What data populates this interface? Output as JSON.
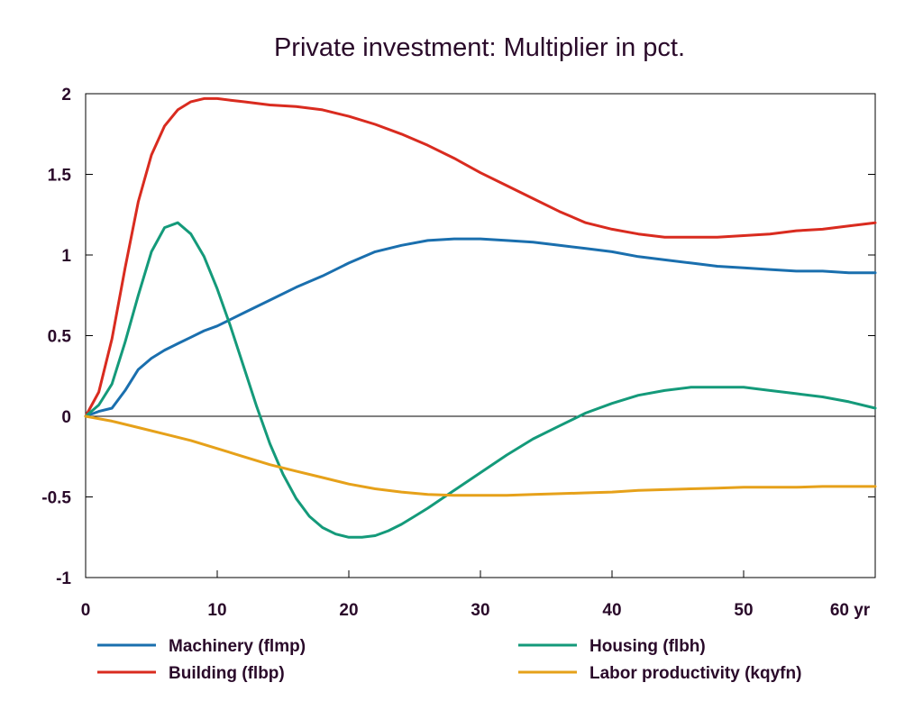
{
  "chart_data": {
    "type": "line",
    "title": "Private investment: Multiplier in pct.",
    "xlabel": "",
    "ylabel": "",
    "x_unit_label": "yr",
    "xlim": [
      0,
      60
    ],
    "ylim": [
      -1,
      2
    ],
    "x_ticks": [
      0,
      10,
      20,
      30,
      40,
      50,
      60
    ],
    "x_tick_labels": [
      "0",
      "10",
      "20",
      "30",
      "40",
      "50",
      "60"
    ],
    "y_ticks": [
      2,
      1.5,
      1,
      0.5,
      0,
      -0.5,
      -1
    ],
    "y_tick_labels": [
      "2",
      "1.5",
      "1",
      "0.5",
      "0",
      "-0.5",
      "-1"
    ],
    "grid": false,
    "zero_line": true,
    "legend_position": "bottom",
    "series": [
      {
        "name": "Machinery (flmp)",
        "color": "#1a6fae",
        "x": [
          0,
          1,
          2,
          3,
          4,
          5,
          6,
          7,
          8,
          9,
          10,
          12,
          14,
          16,
          18,
          20,
          22,
          24,
          26,
          28,
          30,
          32,
          34,
          36,
          38,
          40,
          42,
          44,
          46,
          48,
          50,
          52,
          54,
          56,
          58,
          60
        ],
        "y": [
          0,
          0.03,
          0.05,
          0.16,
          0.29,
          0.36,
          0.41,
          0.45,
          0.49,
          0.53,
          0.56,
          0.64,
          0.72,
          0.8,
          0.87,
          0.95,
          1.02,
          1.06,
          1.09,
          1.1,
          1.1,
          1.09,
          1.08,
          1.06,
          1.04,
          1.02,
          0.99,
          0.97,
          0.95,
          0.93,
          0.92,
          0.91,
          0.9,
          0.9,
          0.89,
          0.89
        ]
      },
      {
        "name": "Building (flbp)",
        "color": "#d92b1f",
        "x": [
          0,
          1,
          2,
          3,
          4,
          5,
          6,
          7,
          8,
          9,
          10,
          11,
          12,
          14,
          16,
          18,
          20,
          22,
          24,
          26,
          28,
          30,
          32,
          34,
          36,
          38,
          40,
          42,
          44,
          46,
          48,
          50,
          52,
          54,
          56,
          58,
          60
        ],
        "y": [
          0,
          0.15,
          0.48,
          0.92,
          1.33,
          1.62,
          1.8,
          1.9,
          1.95,
          1.97,
          1.97,
          1.96,
          1.95,
          1.93,
          1.92,
          1.9,
          1.86,
          1.81,
          1.75,
          1.68,
          1.6,
          1.51,
          1.43,
          1.35,
          1.27,
          1.2,
          1.16,
          1.13,
          1.11,
          1.11,
          1.11,
          1.12,
          1.13,
          1.15,
          1.16,
          1.18,
          1.2
        ]
      },
      {
        "name": "Housing (flbh)",
        "color": "#149a7a",
        "x": [
          0,
          1,
          2,
          3,
          4,
          5,
          6,
          7,
          8,
          9,
          10,
          11,
          12,
          13,
          14,
          15,
          16,
          17,
          18,
          19,
          20,
          21,
          22,
          23,
          24,
          25,
          26,
          28,
          30,
          32,
          34,
          36,
          38,
          40,
          42,
          44,
          46,
          48,
          50,
          52,
          54,
          56,
          58,
          60
        ],
        "y": [
          0,
          0.07,
          0.2,
          0.46,
          0.75,
          1.02,
          1.17,
          1.2,
          1.13,
          0.99,
          0.79,
          0.56,
          0.31,
          0.06,
          -0.17,
          -0.36,
          -0.51,
          -0.62,
          -0.69,
          -0.73,
          -0.75,
          -0.75,
          -0.74,
          -0.71,
          -0.67,
          -0.62,
          -0.57,
          -0.46,
          -0.35,
          -0.24,
          -0.14,
          -0.06,
          0.02,
          0.08,
          0.13,
          0.16,
          0.18,
          0.18,
          0.18,
          0.16,
          0.14,
          0.12,
          0.09,
          0.05
        ]
      },
      {
        "name": "Labor productivity (kqyfn)",
        "color": "#e6a11a",
        "x": [
          0,
          2,
          4,
          6,
          8,
          10,
          12,
          14,
          16,
          18,
          20,
          22,
          24,
          26,
          28,
          30,
          32,
          34,
          36,
          38,
          40,
          42,
          44,
          46,
          48,
          50,
          52,
          54,
          56,
          58,
          60
        ],
        "y": [
          0,
          -0.03,
          -0.07,
          -0.11,
          -0.15,
          -0.2,
          -0.25,
          -0.3,
          -0.34,
          -0.38,
          -0.42,
          -0.45,
          -0.47,
          -0.485,
          -0.49,
          -0.49,
          -0.49,
          -0.485,
          -0.48,
          -0.475,
          -0.47,
          -0.46,
          -0.455,
          -0.45,
          -0.445,
          -0.44,
          -0.44,
          -0.44,
          -0.435,
          -0.435,
          -0.435
        ]
      }
    ]
  }
}
